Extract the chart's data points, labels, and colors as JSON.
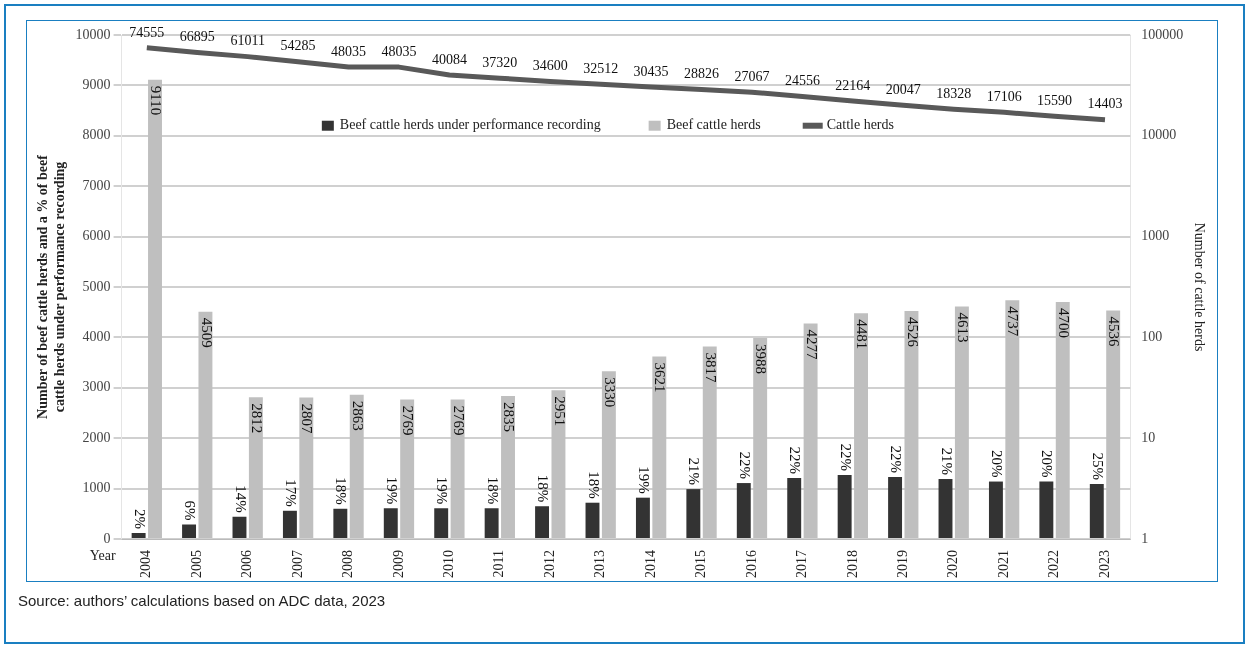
{
  "chart_data": {
    "type": "bar",
    "categories": [
      "2004",
      "2005",
      "2006",
      "2007",
      "2008",
      "2009",
      "2010",
      "2011",
      "2012",
      "2013",
      "2014",
      "2015",
      "2016",
      "2017",
      "2018",
      "2019",
      "2020",
      "2021",
      "2022",
      "2023"
    ],
    "series": [
      {
        "name": "Beef cattle herds under performance recording",
        "color": "#333333",
        "values": [
          120,
          290,
          440,
          560,
          600,
          610,
          610,
          610,
          650,
          720,
          820,
          990,
          1110,
          1210,
          1270,
          1230,
          1190,
          1140,
          1140,
          1090
        ]
      },
      {
        "name": "Beef cattle herds",
        "color": "#bfbfbf",
        "values": [
          9110,
          4509,
          2812,
          2807,
          2863,
          2769,
          2769,
          2835,
          2951,
          3330,
          3621,
          3817,
          3988,
          4277,
          4481,
          4526,
          4613,
          4737,
          4700,
          4536
        ],
        "value_labels": [
          "9110",
          "4509",
          "2812",
          "2807",
          "2863",
          "2769",
          "2769",
          "2835",
          "2951",
          "3330",
          "3621",
          "3817",
          "3988",
          "4277",
          "4481",
          "4526",
          "4613",
          "4737",
          "4700",
          "4536"
        ]
      },
      {
        "name": "Cattle herds",
        "type": "line",
        "axis": "y2",
        "color": "#595959",
        "values": [
          74555,
          66895,
          61011,
          54285,
          48035,
          48035,
          40084,
          37320,
          34600,
          32512,
          30435,
          28826,
          27067,
          24556,
          22164,
          20047,
          18328,
          17106,
          15590,
          14403
        ],
        "value_labels": [
          "74555",
          "66895",
          "61011",
          "54285",
          "48035",
          "48035",
          "40084",
          "37320",
          "34600",
          "32512",
          "30435",
          "28826",
          "27067",
          "24556",
          "22164",
          "20047",
          "18328",
          "17106",
          "15590",
          "14403"
        ]
      }
    ],
    "xlabel": "Year",
    "ylabel": "Number of beef cattle herds and a % of beef cattle herds under performance recording",
    "y2label": "Number of cattle herds",
    "ylim": [
      0,
      10000
    ],
    "yticks": [
      0,
      1000,
      2000,
      3000,
      4000,
      5000,
      6000,
      7000,
      8000,
      9000,
      10000
    ],
    "y2lim": [
      1,
      100000
    ],
    "y2ticks": [
      1,
      10,
      100,
      1000,
      10000,
      100000
    ],
    "log": "y2",
    "grid": "y",
    "legend": "top",
    "marker": "none",
    "annotations": [
      "Source: authors’ calculations based on ADC data, 2023",
      {
        "text": "2%",
        "x": "2004",
        "y": 120
      },
      {
        "text": "6%",
        "x": "2005",
        "y": 290
      },
      {
        "text": "14%",
        "x": "2006",
        "y": 440
      },
      {
        "text": "17%",
        "x": "2007",
        "y": 560
      },
      {
        "text": "18%",
        "x": "2008",
        "y": 600
      },
      {
        "text": "19%",
        "x": "2009",
        "y": 610
      },
      {
        "text": "19%",
        "x": "2010",
        "y": 610
      },
      {
        "text": "18%",
        "x": "2011",
        "y": 610
      },
      {
        "text": "18%",
        "x": "2012",
        "y": 650
      },
      {
        "text": "18%",
        "x": "2013",
        "y": 720
      },
      {
        "text": "19%",
        "x": "2014",
        "y": 820
      },
      {
        "text": "21%",
        "x": "2015",
        "y": 990
      },
      {
        "text": "22%",
        "x": "2016",
        "y": 1110
      },
      {
        "text": "22%",
        "x": "2017",
        "y": 1210
      },
      {
        "text": "22%",
        "x": "2018",
        "y": 1270
      },
      {
        "text": "22%",
        "x": "2019",
        "y": 1230
      },
      {
        "text": "21%",
        "x": "2020",
        "y": 1190
      },
      {
        "text": "20%",
        "x": "2021",
        "y": 1140
      },
      {
        "text": "20%",
        "x": "2022",
        "y": 1140
      },
      {
        "text": "25%",
        "x": "2023",
        "y": 1090
      }
    ]
  }
}
